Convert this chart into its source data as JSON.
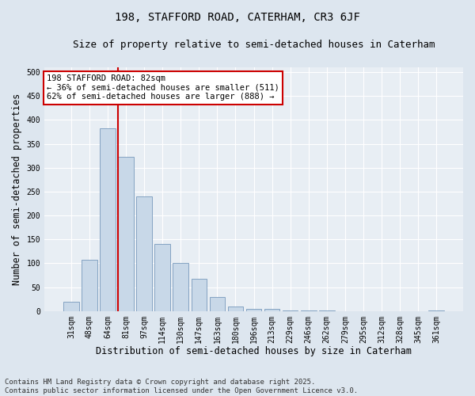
{
  "title_line1": "198, STAFFORD ROAD, CATERHAM, CR3 6JF",
  "title_line2": "Size of property relative to semi-detached houses in Caterham",
  "xlabel": "Distribution of semi-detached houses by size in Caterham",
  "ylabel": "Number of semi-detached properties",
  "categories": [
    "31sqm",
    "48sqm",
    "64sqm",
    "81sqm",
    "97sqm",
    "114sqm",
    "130sqm",
    "147sqm",
    "163sqm",
    "180sqm",
    "196sqm",
    "213sqm",
    "229sqm",
    "246sqm",
    "262sqm",
    "279sqm",
    "295sqm",
    "312sqm",
    "328sqm",
    "345sqm",
    "361sqm"
  ],
  "values": [
    20,
    108,
    382,
    323,
    240,
    140,
    100,
    68,
    30,
    9,
    5,
    5,
    2,
    2,
    1,
    0,
    0,
    0,
    0,
    0,
    2
  ],
  "bar_color": "#c8d8e8",
  "bar_edge_color": "#7799bb",
  "vline_color": "#cc0000",
  "vline_index": 3,
  "annotation_text": "198 STAFFORD ROAD: 82sqm\n← 36% of semi-detached houses are smaller (511)\n62% of semi-detached houses are larger (888) →",
  "annotation_box_color": "#ffffff",
  "annotation_box_edge_color": "#cc0000",
  "ylim": [
    0,
    510
  ],
  "yticks": [
    0,
    50,
    100,
    150,
    200,
    250,
    300,
    350,
    400,
    450,
    500
  ],
  "footer": "Contains HM Land Registry data © Crown copyright and database right 2025.\nContains public sector information licensed under the Open Government Licence v3.0.",
  "bg_color": "#dde6ef",
  "plot_bg_color": "#e8eef4",
  "title_fontsize": 10,
  "subtitle_fontsize": 9,
  "axis_label_fontsize": 8.5,
  "tick_fontsize": 7,
  "footer_fontsize": 6.5,
  "annotation_fontsize": 7.5
}
